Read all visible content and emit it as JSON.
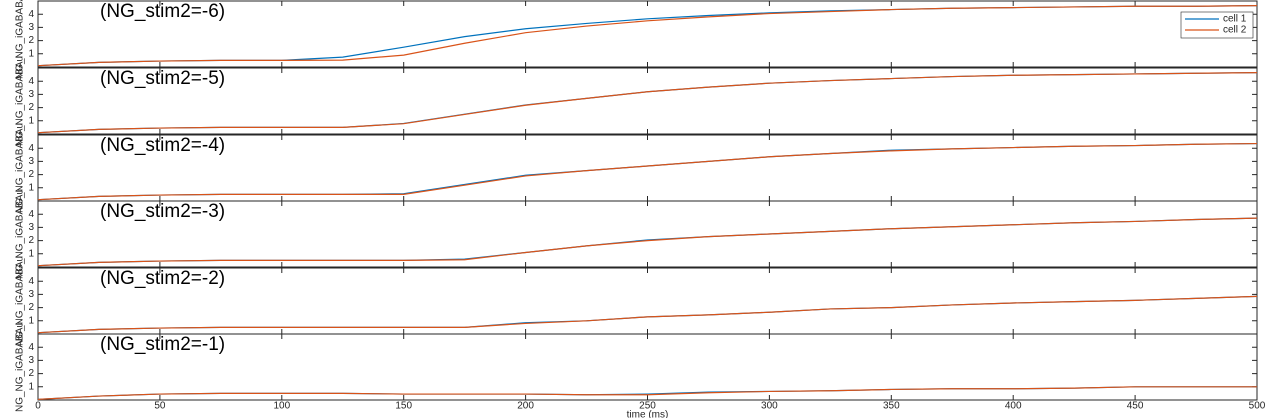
{
  "chart_data": [
    {
      "type": "line",
      "title": "(NG_stim2=-6)",
      "ylabel": "NG_NG_iGABABAu",
      "x": [
        0,
        25,
        50,
        75,
        100,
        125,
        150,
        175,
        200,
        225,
        250,
        275,
        300,
        325,
        350,
        375,
        400,
        425,
        450,
        475,
        500
      ],
      "series": [
        {
          "name": "cell 1",
          "color": "#0072bd",
          "values": [
            0.1,
            0.35,
            0.45,
            0.5,
            0.5,
            0.75,
            1.5,
            2.3,
            2.9,
            3.3,
            3.65,
            3.9,
            4.1,
            4.25,
            4.35,
            4.45,
            4.5,
            4.55,
            4.6,
            4.6,
            4.65
          ]
        },
        {
          "name": "cell 2",
          "color": "#d95319",
          "values": [
            0.1,
            0.35,
            0.45,
            0.5,
            0.5,
            0.52,
            0.9,
            1.8,
            2.6,
            3.1,
            3.5,
            3.8,
            4.05,
            4.2,
            4.35,
            4.45,
            4.5,
            4.55,
            4.6,
            4.6,
            4.65
          ]
        }
      ],
      "xlim": [
        0,
        500
      ],
      "ylim": [
        0,
        5
      ],
      "xticks": [
        0,
        50,
        100,
        150,
        200,
        250,
        300,
        350,
        400,
        450,
        500
      ],
      "yticks": [
        1,
        2,
        3,
        4
      ],
      "legend": "upper right"
    },
    {
      "type": "line",
      "title": "(NG_stim2=-5)",
      "ylabel": "NG_NG_iGABABAu",
      "x": [
        0,
        25,
        50,
        75,
        100,
        125,
        150,
        175,
        200,
        225,
        250,
        275,
        300,
        325,
        350,
        375,
        400,
        425,
        450,
        475,
        500
      ],
      "series": [
        {
          "color": "#0072bd",
          "values": [
            0.1,
            0.35,
            0.45,
            0.5,
            0.5,
            0.5,
            0.8,
            1.5,
            2.2,
            2.7,
            3.2,
            3.55,
            3.85,
            4.05,
            4.2,
            4.35,
            4.45,
            4.5,
            4.55,
            4.6,
            4.65
          ]
        },
        {
          "color": "#d95319",
          "values": [
            0.1,
            0.35,
            0.45,
            0.5,
            0.5,
            0.5,
            0.78,
            1.48,
            2.18,
            2.7,
            3.2,
            3.55,
            3.85,
            4.05,
            4.2,
            4.35,
            4.45,
            4.5,
            4.55,
            4.6,
            4.65
          ]
        }
      ],
      "xlim": [
        0,
        500
      ],
      "ylim": [
        0,
        5
      ],
      "xticks": [
        0,
        50,
        100,
        150,
        200,
        250,
        300,
        350,
        400,
        450,
        500
      ],
      "yticks": [
        1,
        2,
        3,
        4
      ]
    },
    {
      "type": "line",
      "title": "(NG_stim2=-4)",
      "ylabel": "NG_NG_iGABABAu",
      "x": [
        0,
        25,
        50,
        75,
        100,
        125,
        150,
        175,
        200,
        225,
        250,
        275,
        300,
        325,
        350,
        375,
        400,
        425,
        450,
        475,
        500
      ],
      "series": [
        {
          "color": "#0072bd",
          "values": [
            0.1,
            0.35,
            0.45,
            0.5,
            0.5,
            0.5,
            0.55,
            1.25,
            1.95,
            2.3,
            2.65,
            3.0,
            3.35,
            3.6,
            3.85,
            3.95,
            4.05,
            4.15,
            4.2,
            4.3,
            4.35
          ]
        },
        {
          "color": "#d95319",
          "values": [
            0.1,
            0.35,
            0.45,
            0.5,
            0.5,
            0.5,
            0.5,
            1.2,
            1.9,
            2.3,
            2.65,
            3.0,
            3.35,
            3.6,
            3.8,
            3.95,
            4.05,
            4.15,
            4.2,
            4.3,
            4.35
          ]
        }
      ],
      "xlim": [
        0,
        500
      ],
      "ylim": [
        0,
        5
      ],
      "xticks": [
        0,
        50,
        100,
        150,
        200,
        250,
        300,
        350,
        400,
        450,
        500
      ],
      "yticks": [
        1,
        2,
        3,
        4
      ]
    },
    {
      "type": "line",
      "title": "(NG_stim2=-3)",
      "ylabel": "NG_NG_iGABABAu",
      "x": [
        0,
        25,
        50,
        75,
        100,
        125,
        150,
        175,
        200,
        225,
        250,
        275,
        300,
        325,
        350,
        375,
        400,
        425,
        450,
        475,
        500
      ],
      "series": [
        {
          "color": "#0072bd",
          "values": [
            0.1,
            0.35,
            0.45,
            0.5,
            0.5,
            0.5,
            0.5,
            0.6,
            1.1,
            1.6,
            2.05,
            2.3,
            2.5,
            2.7,
            2.9,
            3.05,
            3.2,
            3.35,
            3.45,
            3.6,
            3.7
          ]
        },
        {
          "color": "#d95319",
          "values": [
            0.1,
            0.35,
            0.45,
            0.5,
            0.5,
            0.5,
            0.5,
            0.55,
            1.1,
            1.6,
            2.0,
            2.3,
            2.5,
            2.7,
            2.9,
            3.05,
            3.2,
            3.35,
            3.45,
            3.6,
            3.7
          ]
        }
      ],
      "xlim": [
        0,
        500
      ],
      "ylim": [
        0,
        5
      ],
      "xticks": [
        0,
        50,
        100,
        150,
        200,
        250,
        300,
        350,
        400,
        450,
        500
      ],
      "yticks": [
        1,
        2,
        3,
        4
      ]
    },
    {
      "type": "line",
      "title": "(NG_stim2=-2)",
      "ylabel": "NG_NG_iGABABAu",
      "x": [
        0,
        25,
        50,
        75,
        100,
        125,
        150,
        175,
        200,
        225,
        250,
        275,
        300,
        325,
        350,
        375,
        400,
        425,
        450,
        475,
        500
      ],
      "series": [
        {
          "color": "#0072bd",
          "values": [
            0.1,
            0.35,
            0.45,
            0.5,
            0.5,
            0.5,
            0.5,
            0.5,
            0.85,
            1.0,
            1.3,
            1.45,
            1.65,
            1.9,
            2.0,
            2.2,
            2.35,
            2.45,
            2.55,
            2.7,
            2.85
          ]
        },
        {
          "color": "#d95319",
          "values": [
            0.1,
            0.35,
            0.45,
            0.5,
            0.5,
            0.5,
            0.5,
            0.5,
            0.8,
            1.0,
            1.3,
            1.45,
            1.65,
            1.9,
            2.0,
            2.2,
            2.35,
            2.45,
            2.55,
            2.7,
            2.85
          ]
        }
      ],
      "xlim": [
        0,
        500
      ],
      "ylim": [
        0,
        5
      ],
      "xticks": [
        0,
        50,
        100,
        150,
        200,
        250,
        300,
        350,
        400,
        450,
        500
      ],
      "yticks": [
        1,
        2,
        3,
        4
      ]
    },
    {
      "type": "line",
      "title": "(NG_stim2=-1)",
      "ylabel": "NG_NG_iGABABAu",
      "xlabel": "time (ms)",
      "x": [
        0,
        25,
        50,
        75,
        100,
        125,
        150,
        175,
        200,
        225,
        250,
        275,
        300,
        325,
        350,
        375,
        400,
        425,
        450,
        475,
        500
      ],
      "series": [
        {
          "color": "#0072bd",
          "values": [
            0.05,
            0.3,
            0.45,
            0.5,
            0.5,
            0.5,
            0.45,
            0.45,
            0.45,
            0.4,
            0.45,
            0.6,
            0.65,
            0.7,
            0.8,
            0.85,
            0.85,
            0.9,
            1.0,
            1.0,
            1.0
          ]
        },
        {
          "color": "#d95319",
          "values": [
            0.05,
            0.3,
            0.45,
            0.5,
            0.5,
            0.5,
            0.45,
            0.45,
            0.45,
            0.4,
            0.4,
            0.55,
            0.65,
            0.7,
            0.8,
            0.85,
            0.85,
            0.9,
            1.0,
            1.0,
            1.0
          ]
        }
      ],
      "xlim": [
        0,
        500
      ],
      "ylim": [
        0,
        5
      ],
      "xticks": [
        0,
        50,
        100,
        150,
        200,
        250,
        300,
        350,
        400,
        450,
        500
      ],
      "yticks": [
        1,
        2,
        3,
        4
      ]
    }
  ]
}
